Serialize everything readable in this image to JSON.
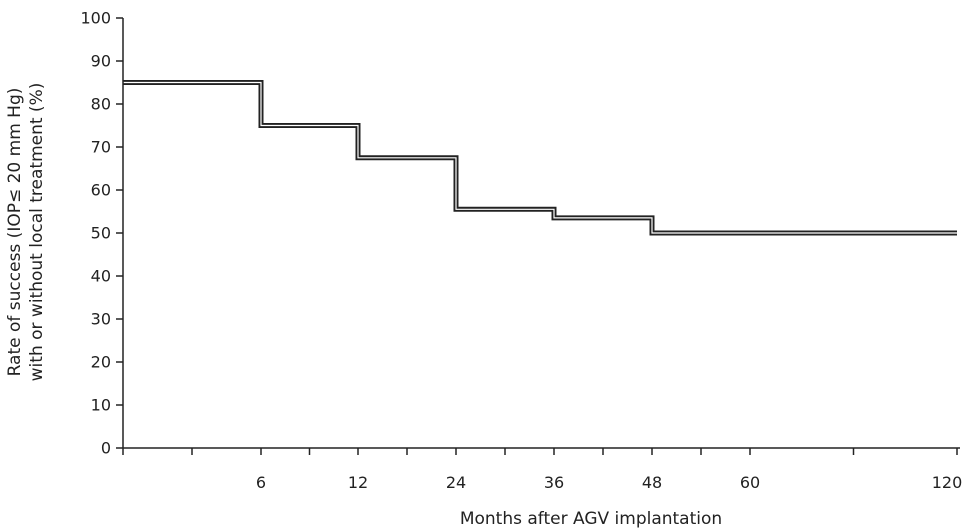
{
  "chart_data": {
    "type": "line",
    "step": true,
    "title": "",
    "xlabel": "Months after AGV implantation",
    "ylabel_lines": [
      "Rate of success (IOP≤ 20 mm Hg)",
      "with or without local treatment (%)"
    ],
    "x_ticks": [
      6,
      12,
      24,
      36,
      48,
      60,
      120
    ],
    "x_positions": [
      6,
      12,
      24,
      36,
      48,
      60,
      120
    ],
    "y_ticks": [
      0,
      10,
      20,
      30,
      40,
      50,
      60,
      70,
      80,
      90,
      100
    ],
    "ylim": [
      0,
      100
    ],
    "grid": false,
    "line_color": "#222222",
    "series": [
      {
        "x": [
          0,
          6,
          6,
          12,
          12,
          24,
          24,
          36,
          36,
          48,
          48,
          120
        ],
        "y": [
          85,
          85,
          75,
          75,
          67.5,
          67.5,
          55.5,
          55.5,
          53.5,
          53.5,
          50,
          50
        ]
      }
    ]
  }
}
